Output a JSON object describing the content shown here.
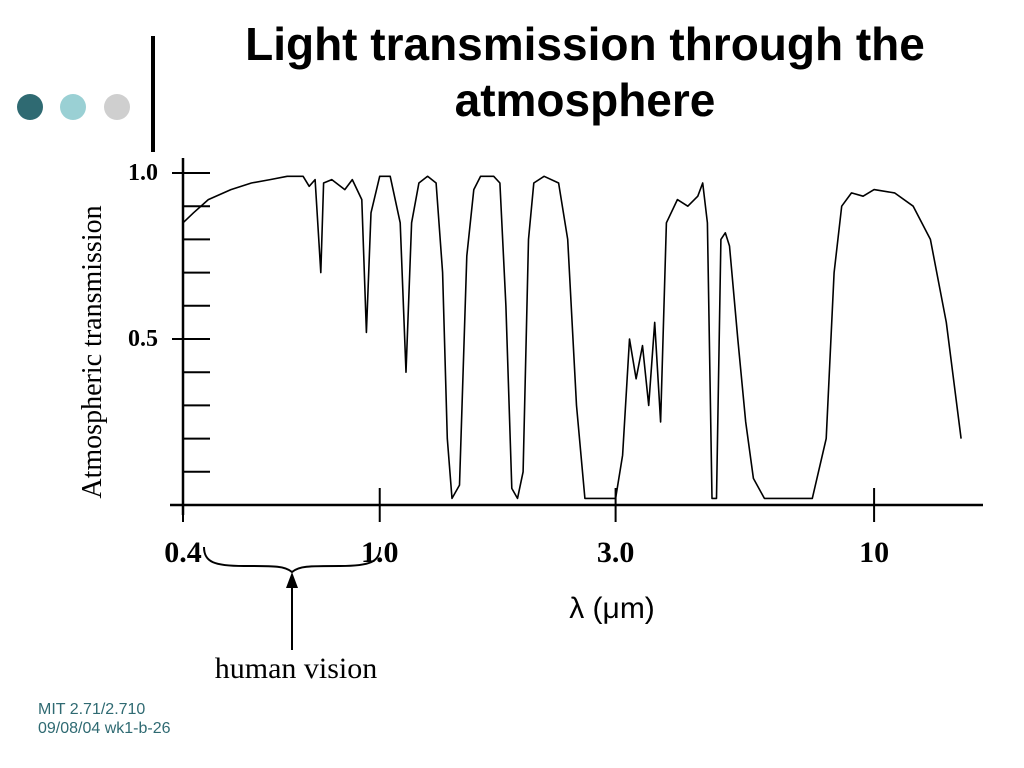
{
  "slide": {
    "title_line1": "Light transmission through the",
    "title_line2": "atmosphere"
  },
  "footer": {
    "line1": "MIT 2.71/2.710",
    "line2": "09/08/04 wk1-b-26"
  },
  "colors": {
    "accent_dark": "#2f6a72",
    "accent_light": "#9ad0d4",
    "accent_grey": "#cfcfcf"
  },
  "chart_data": {
    "type": "line",
    "title": "",
    "xlabel": "λ (μm)",
    "ylabel": "Atmospheric transmission",
    "x_scale": "log",
    "xlim": [
      0.4,
      16
    ],
    "ylim": [
      0,
      1.0
    ],
    "x_tick_labels": [
      {
        "value": 0.4,
        "label": "0.4"
      },
      {
        "value": 1.0,
        "label": "1.0"
      },
      {
        "value": 3.0,
        "label": "3.0"
      },
      {
        "value": 10,
        "label": "10"
      }
    ],
    "y_tick_labels": [
      {
        "value": 1.0,
        "label": "1.0"
      },
      {
        "value": 0.5,
        "label": "0.5"
      }
    ],
    "y_minor_ticks": [
      0.1,
      0.2,
      0.3,
      0.4,
      0.5,
      0.6,
      0.7,
      0.8,
      0.9,
      1.0
    ],
    "grid": false,
    "annotation": {
      "text": "human vision",
      "range": [
        0.42,
        0.78
      ]
    },
    "series": [
      {
        "points": [
          [
            0.4,
            0.85
          ],
          [
            0.42,
            0.88
          ],
          [
            0.45,
            0.92
          ],
          [
            0.5,
            0.95
          ],
          [
            0.55,
            0.97
          ],
          [
            0.6,
            0.98
          ],
          [
            0.65,
            0.99
          ],
          [
            0.7,
            0.99
          ],
          [
            0.72,
            0.96
          ],
          [
            0.74,
            0.98
          ],
          [
            0.76,
            0.7
          ],
          [
            0.77,
            0.97
          ],
          [
            0.8,
            0.98
          ],
          [
            0.85,
            0.95
          ],
          [
            0.88,
            0.98
          ],
          [
            0.92,
            0.92
          ],
          [
            0.94,
            0.52
          ],
          [
            0.96,
            0.88
          ],
          [
            1.0,
            0.99
          ],
          [
            1.05,
            0.99
          ],
          [
            1.1,
            0.85
          ],
          [
            1.13,
            0.4
          ],
          [
            1.16,
            0.85
          ],
          [
            1.2,
            0.97
          ],
          [
            1.25,
            0.99
          ],
          [
            1.3,
            0.97
          ],
          [
            1.34,
            0.7
          ],
          [
            1.37,
            0.2
          ],
          [
            1.4,
            0.02
          ],
          [
            1.45,
            0.06
          ],
          [
            1.5,
            0.75
          ],
          [
            1.55,
            0.95
          ],
          [
            1.6,
            0.99
          ],
          [
            1.7,
            0.99
          ],
          [
            1.75,
            0.97
          ],
          [
            1.8,
            0.6
          ],
          [
            1.85,
            0.05
          ],
          [
            1.9,
            0.02
          ],
          [
            1.95,
            0.1
          ],
          [
            2.0,
            0.8
          ],
          [
            2.05,
            0.97
          ],
          [
            2.15,
            0.99
          ],
          [
            2.3,
            0.97
          ],
          [
            2.4,
            0.8
          ],
          [
            2.5,
            0.3
          ],
          [
            2.6,
            0.02
          ],
          [
            2.8,
            0.02
          ],
          [
            3.0,
            0.02
          ],
          [
            3.1,
            0.15
          ],
          [
            3.2,
            0.5
          ],
          [
            3.3,
            0.38
          ],
          [
            3.4,
            0.48
          ],
          [
            3.5,
            0.3
          ],
          [
            3.6,
            0.55
          ],
          [
            3.7,
            0.25
          ],
          [
            3.8,
            0.85
          ],
          [
            4.0,
            0.92
          ],
          [
            4.2,
            0.9
          ],
          [
            4.4,
            0.93
          ],
          [
            4.5,
            0.97
          ],
          [
            4.6,
            0.85
          ],
          [
            4.7,
            0.02
          ],
          [
            4.8,
            0.02
          ],
          [
            4.9,
            0.8
          ],
          [
            5.0,
            0.82
          ],
          [
            5.1,
            0.78
          ],
          [
            5.3,
            0.5
          ],
          [
            5.5,
            0.25
          ],
          [
            5.7,
            0.08
          ],
          [
            6.0,
            0.02
          ],
          [
            6.5,
            0.02
          ],
          [
            7.0,
            0.02
          ],
          [
            7.5,
            0.02
          ],
          [
            8.0,
            0.2
          ],
          [
            8.3,
            0.7
          ],
          [
            8.6,
            0.9
          ],
          [
            9.0,
            0.94
          ],
          [
            9.5,
            0.93
          ],
          [
            10.0,
            0.95
          ],
          [
            11.0,
            0.94
          ],
          [
            12.0,
            0.9
          ],
          [
            13.0,
            0.8
          ],
          [
            14.0,
            0.55
          ],
          [
            15.0,
            0.2
          ]
        ]
      }
    ]
  }
}
